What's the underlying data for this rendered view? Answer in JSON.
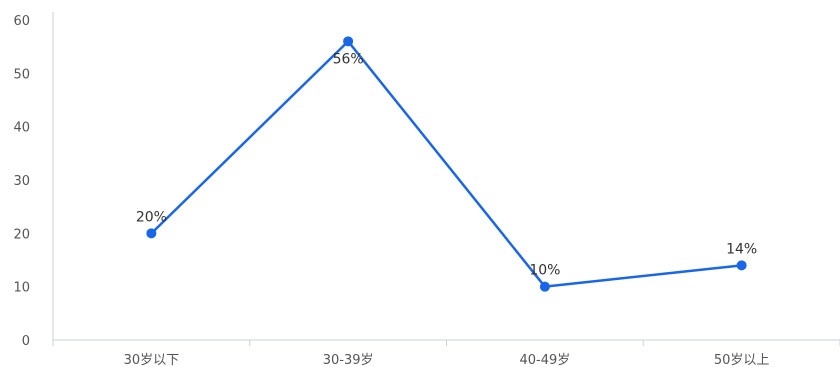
{
  "chart_data": {
    "type": "line",
    "categories": [
      "30岁以下",
      "30-39岁",
      "40-49岁",
      "50岁以上"
    ],
    "series": [
      {
        "values": [
          20,
          56,
          10,
          14
        ],
        "labels": [
          "20%",
          "56%",
          "10%",
          "14%"
        ],
        "color": "#1a66e8"
      }
    ],
    "ylim": [
      0,
      60
    ],
    "yticks": [
      0,
      10,
      20,
      30,
      40,
      50,
      60
    ],
    "ytick_labels": [
      "0",
      "10",
      "20",
      "30",
      "40",
      "50",
      "60"
    ],
    "grid": false,
    "axis_color": "#c8d0dc"
  }
}
